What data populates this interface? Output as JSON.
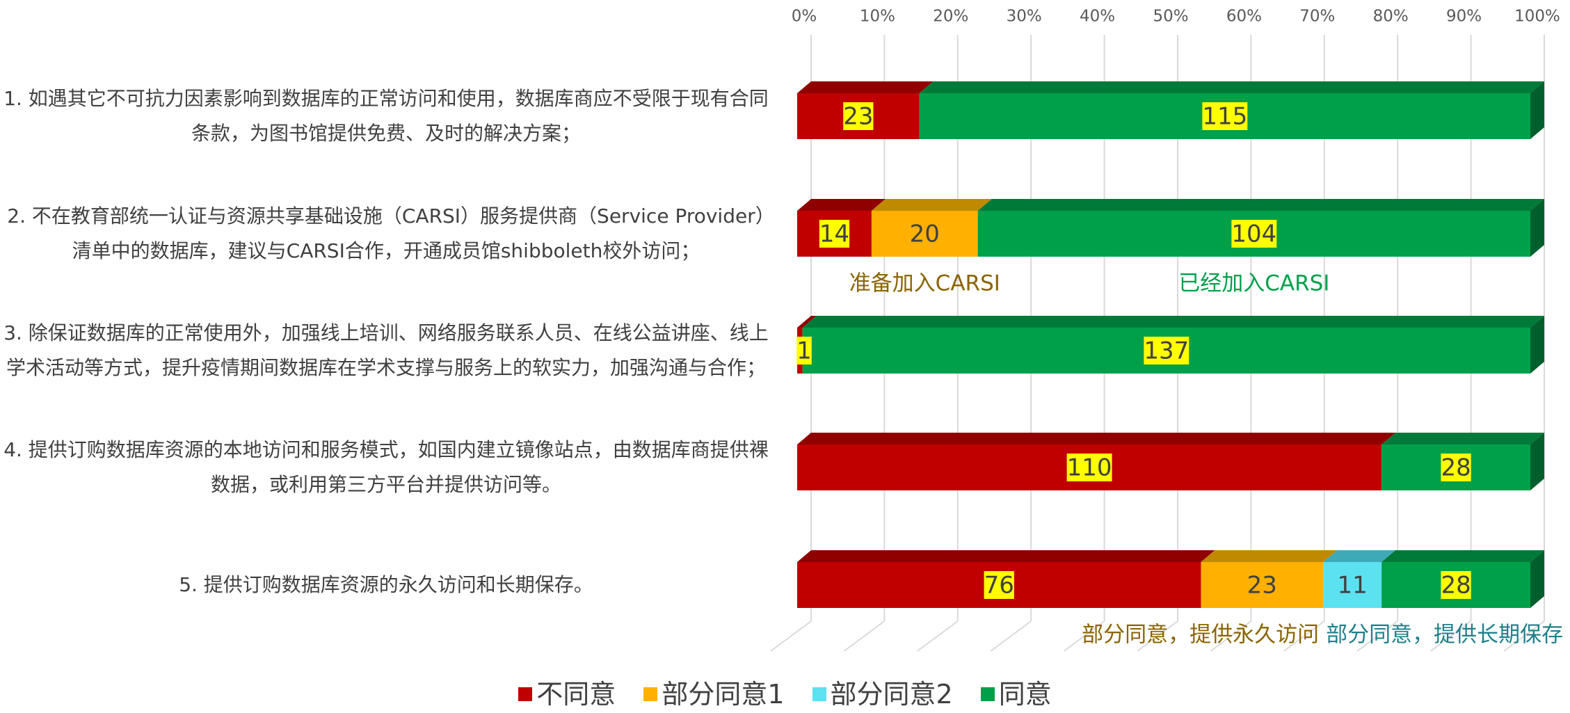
{
  "chart_data": {
    "type": "bar",
    "orientation": "horizontal",
    "stacked": "percent",
    "categories": [
      "1. 如遇其它不可抗力因素影响到数据库的正常访问和使用，数据库商应不受限于现有合同条款，为图书馆提供免费、及时的解决方案；",
      "2. 不在教育部统一认证与资源共享基础设施（CARSI）服务提供商（Service Provider）清单中的数据库，建议与CARSI合作，开通成员馆shibboleth校外访问；",
      "3. 除保证数据库的正常使用外，加强线上培训、网络服务联系人员、在线公益讲座、线上学术活动等方式，提升疫情期间数据库在学术支撑与服务上的软实力，加强沟通与合作；",
      "4. 提供订购数据库资源的本地访问和服务模式，如国内建立镜像站点，由数据库商提供裸数据，或利用第三方平台并提供访问等。",
      "5. 提供订购数据库资源的永久访问和长期保存。"
    ],
    "series": [
      {
        "name": "不同意",
        "color": "#c00000",
        "top_color": "#900000",
        "label_highlight": true,
        "values": [
          23,
          14,
          1,
          110,
          76
        ]
      },
      {
        "name": "部分同意1",
        "color": "#ffb000",
        "top_color": "#c08a00",
        "label_highlight": false,
        "values": [
          null,
          20,
          null,
          null,
          23
        ]
      },
      {
        "name": "部分同意2",
        "color": "#5ce1f0",
        "top_color": "#3eaab8",
        "label_highlight": false,
        "values": [
          null,
          null,
          null,
          null,
          11
        ]
      },
      {
        "name": "同意",
        "color": "#00a04a",
        "top_color": "#007a38",
        "side_color": "#005f2c",
        "label_highlight": true,
        "values": [
          115,
          104,
          137,
          28,
          28
        ]
      }
    ],
    "xlim": [
      0,
      100
    ],
    "xticks": [
      {
        "value": 0,
        "label": "0%"
      },
      {
        "value": 10,
        "label": "10%"
      },
      {
        "value": 20,
        "label": "20%"
      },
      {
        "value": 30,
        "label": "30%"
      },
      {
        "value": 40,
        "label": "40%"
      },
      {
        "value": 50,
        "label": "50%"
      },
      {
        "value": 60,
        "label": "60%"
      },
      {
        "value": 70,
        "label": "70%"
      },
      {
        "value": 80,
        "label": "80%"
      },
      {
        "value": 90,
        "label": "90%"
      },
      {
        "value": 100,
        "label": "100%"
      }
    ],
    "grid": true,
    "legend": "bottom",
    "annotations": [
      {
        "text": "准备加入CARSI",
        "color": "#8a6400"
      },
      {
        "text": "已经加入CARSI",
        "color": "#00a04a"
      },
      {
        "text": "部分同意，提供永久访问",
        "color": "#8a6400"
      },
      {
        "text": "部分同意，提供长期保存",
        "color": "#1f7f8a"
      }
    ]
  }
}
